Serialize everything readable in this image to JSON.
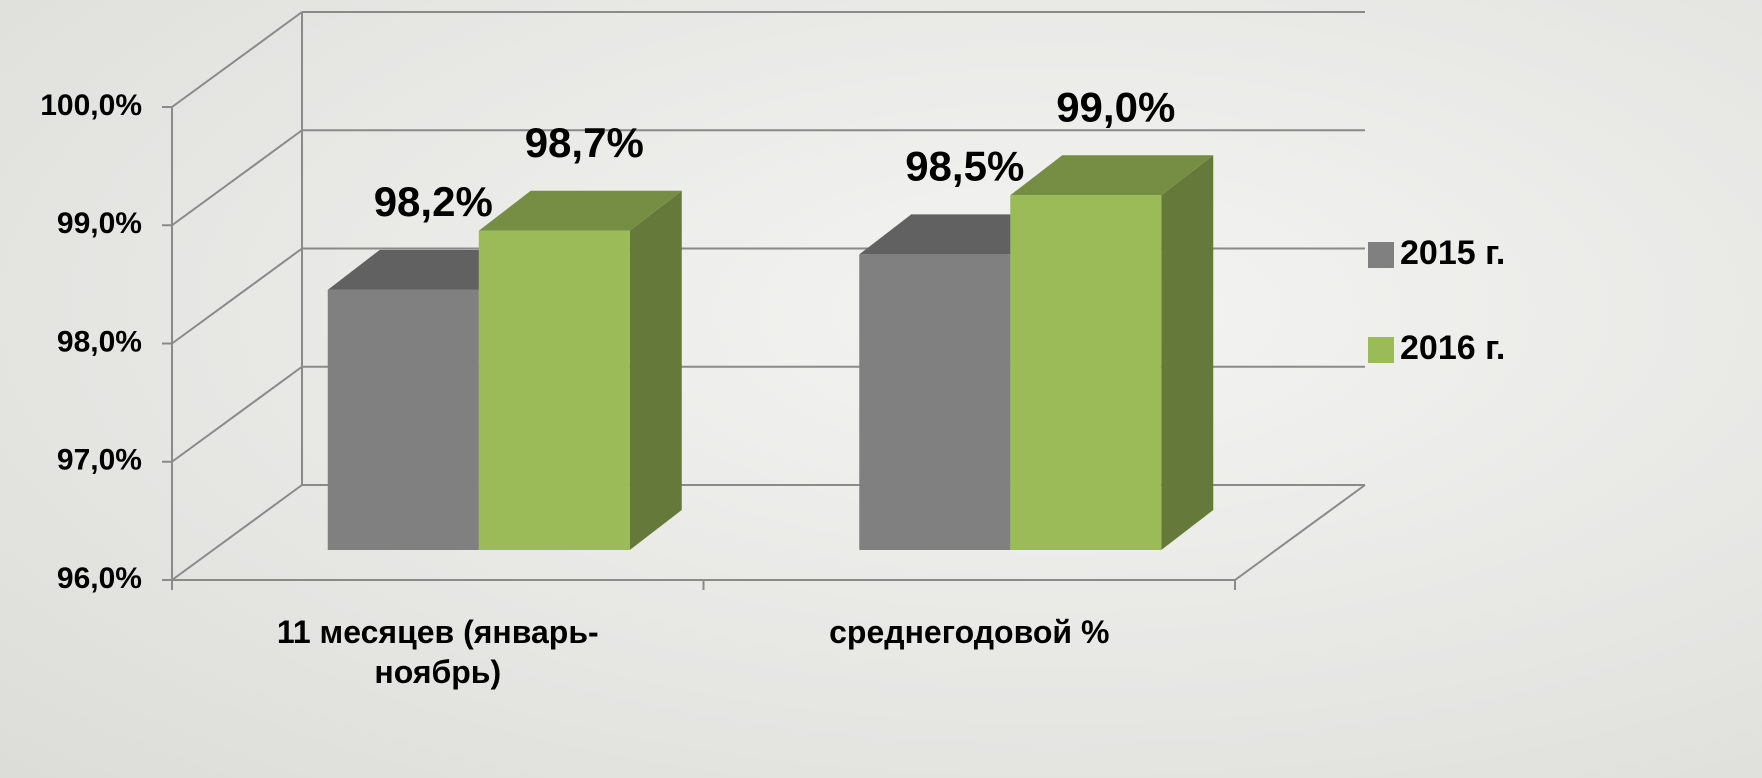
{
  "chart_data": {
    "type": "bar3d",
    "categories": [
      "11 месяцев (январь-ноябрь)",
      "среднегодовой %"
    ],
    "series": [
      {
        "name": "2015 г.",
        "color": "#808080",
        "values": [
          98.2,
          98.5
        ],
        "value_labels": [
          "98,2%",
          "98,5%"
        ]
      },
      {
        "name": "2016 г.",
        "color": "#9bbb59",
        "values": [
          98.7,
          99.0
        ],
        "value_labels": [
          "98,7%",
          "99,0%"
        ]
      }
    ],
    "ylim": [
      96,
      100
    ],
    "yticks": [
      {
        "value": 96,
        "label": "96,0%"
      },
      {
        "value": 97,
        "label": "97,0%"
      },
      {
        "value": 98,
        "label": "98,0%"
      },
      {
        "value": 99,
        "label": "99,0%"
      },
      {
        "value": 100,
        "label": "100,0%"
      }
    ],
    "grid": true,
    "legend": "right"
  }
}
